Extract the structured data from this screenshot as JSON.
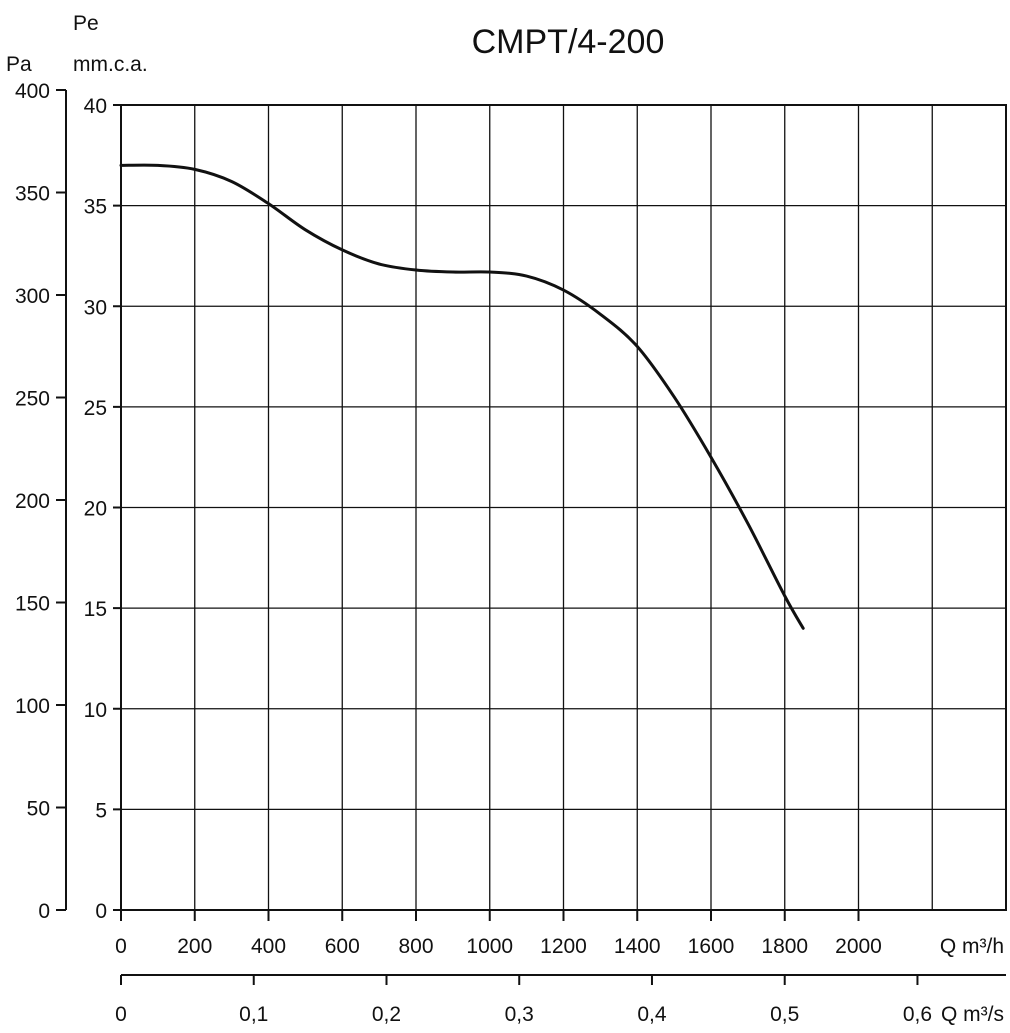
{
  "chart_data": {
    "type": "line",
    "title": "CMPT/4-200",
    "x_axis_primary": {
      "label": "Q m³/h",
      "ticks": [
        0,
        200,
        400,
        600,
        800,
        1000,
        1200,
        1400,
        1600,
        1800,
        2000
      ],
      "range": [
        0,
        2400
      ]
    },
    "x_axis_secondary": {
      "label": "Q m³/s",
      "ticks": [
        0,
        0.1,
        0.2,
        0.3,
        0.4,
        0.5,
        0.6
      ],
      "tick_labels": [
        "0",
        "0,1",
        "0,2",
        "0,3",
        "0,4",
        "0,5",
        "0,6"
      ],
      "range": [
        0,
        0.6667
      ]
    },
    "y_axis_left": {
      "label": "Pa",
      "ticks": [
        0,
        50,
        100,
        150,
        200,
        250,
        300,
        350,
        400
      ],
      "range": [
        0,
        400
      ]
    },
    "y_axis_right": {
      "label_line1": "Pe",
      "label_line2": "mm.c.a.",
      "ticks": [
        0,
        5,
        10,
        15,
        20,
        25,
        30,
        35,
        40
      ],
      "range": [
        0,
        40
      ]
    },
    "grid": true,
    "series": [
      {
        "x": [
          0,
          100,
          200,
          300,
          400,
          500,
          600,
          700,
          800,
          900,
          1000,
          1100,
          1200,
          1300,
          1400,
          1500,
          1600,
          1700,
          1800,
          1850
        ],
        "y": [
          37.0,
          37.0,
          36.8,
          36.2,
          35.1,
          33.8,
          32.8,
          32.1,
          31.8,
          31.7,
          31.7,
          31.5,
          30.8,
          29.6,
          28.0,
          25.5,
          22.5,
          19.2,
          15.6,
          14.0
        ]
      }
    ]
  },
  "colors": {
    "line": "#111111",
    "grid": "#111111",
    "background": "#ffffff"
  }
}
